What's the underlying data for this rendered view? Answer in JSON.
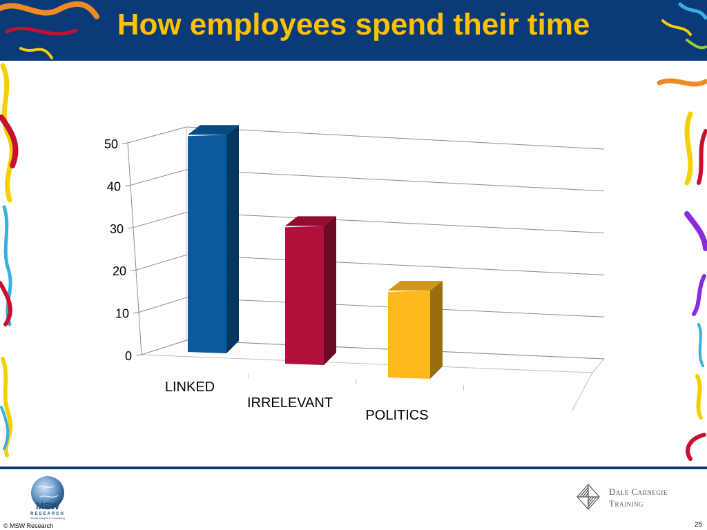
{
  "slide": {
    "title": "How employees spend their time",
    "copyright": "© MSW Research",
    "page_number": "25"
  },
  "logos": {
    "msw_name": "MSW",
    "msw_sub": "RESEARCH",
    "msw_tagline": "Brand Insights & Consulting",
    "dc_line1": "Dale Carnegie",
    "dc_line2": "Training"
  },
  "colors": {
    "header": "#0b3a78",
    "title": "#ffc000",
    "linked": "#0a5aa0",
    "irrelevant": "#b0103a",
    "politics": "#ffb81c"
  },
  "chart_data": {
    "type": "bar",
    "three_d": true,
    "categories": [
      "LINKED",
      "IRRELEVANT",
      "POLITICS"
    ],
    "values": [
      48,
      32,
      20
    ],
    "bar_colors": [
      "#0a5aa0",
      "#b0103a",
      "#ffb81c"
    ],
    "yticks": [
      "0",
      "10",
      "20",
      "30",
      "40",
      "50"
    ],
    "ylim": [
      0,
      50
    ],
    "grid": true,
    "legend": "none"
  }
}
